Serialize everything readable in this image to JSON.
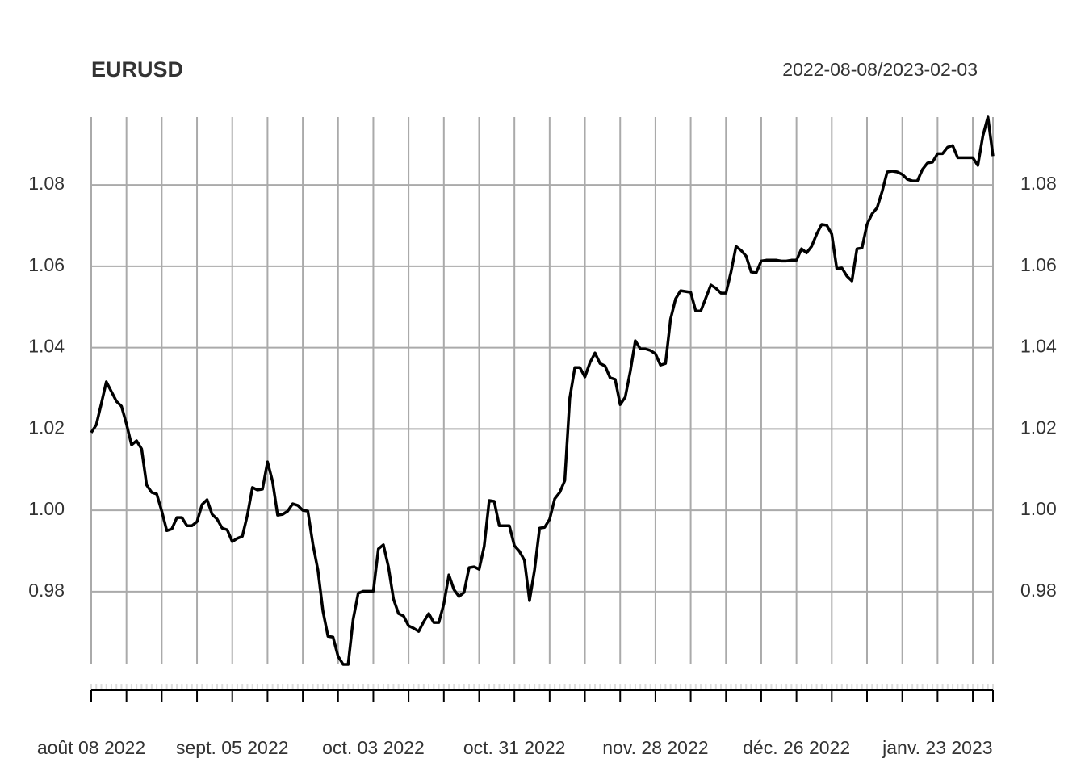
{
  "chart_data": {
    "type": "line",
    "title": "EURUSD",
    "subtitle": "2022-08-08/2023-02-03",
    "x": [
      "2022-08-08",
      "2022-08-09",
      "2022-08-10",
      "2022-08-11",
      "2022-08-12",
      "2022-08-13",
      "2022-08-14",
      "2022-08-15",
      "2022-08-16",
      "2022-08-17",
      "2022-08-18",
      "2022-08-19",
      "2022-08-20",
      "2022-08-21",
      "2022-08-22",
      "2022-08-23",
      "2022-08-24",
      "2022-08-25",
      "2022-08-26",
      "2022-08-27",
      "2022-08-28",
      "2022-08-29",
      "2022-08-30",
      "2022-08-31",
      "2022-09-01",
      "2022-09-02",
      "2022-09-03",
      "2022-09-04",
      "2022-09-05",
      "2022-09-06",
      "2022-09-07",
      "2022-09-08",
      "2022-09-09",
      "2022-09-10",
      "2022-09-11",
      "2022-09-12",
      "2022-09-13",
      "2022-09-14",
      "2022-09-15",
      "2022-09-16",
      "2022-09-17",
      "2022-09-18",
      "2022-09-19",
      "2022-09-20",
      "2022-09-21",
      "2022-09-22",
      "2022-09-23",
      "2022-09-24",
      "2022-09-25",
      "2022-09-26",
      "2022-09-27",
      "2022-09-28",
      "2022-09-29",
      "2022-09-30",
      "2022-10-01",
      "2022-10-02",
      "2022-10-03",
      "2022-10-04",
      "2022-10-05",
      "2022-10-06",
      "2022-10-07",
      "2022-10-08",
      "2022-10-09",
      "2022-10-10",
      "2022-10-11",
      "2022-10-12",
      "2022-10-13",
      "2022-10-14",
      "2022-10-15",
      "2022-10-16",
      "2022-10-17",
      "2022-10-18",
      "2022-10-19",
      "2022-10-20",
      "2022-10-21",
      "2022-10-22",
      "2022-10-23",
      "2022-10-24",
      "2022-10-25",
      "2022-10-26",
      "2022-10-27",
      "2022-10-28",
      "2022-10-29",
      "2022-10-30",
      "2022-10-31",
      "2022-11-01",
      "2022-11-02",
      "2022-11-03",
      "2022-11-04",
      "2022-11-05",
      "2022-11-06",
      "2022-11-07",
      "2022-11-08",
      "2022-11-09",
      "2022-11-10",
      "2022-11-11",
      "2022-11-12",
      "2022-11-13",
      "2022-11-14",
      "2022-11-15",
      "2022-11-16",
      "2022-11-17",
      "2022-11-18",
      "2022-11-19",
      "2022-11-20",
      "2022-11-21",
      "2022-11-22",
      "2022-11-23",
      "2022-11-24",
      "2022-11-25",
      "2022-11-26",
      "2022-11-27",
      "2022-11-28",
      "2022-11-29",
      "2022-11-30",
      "2022-12-01",
      "2022-12-02",
      "2022-12-03",
      "2022-12-04",
      "2022-12-05",
      "2022-12-06",
      "2022-12-07",
      "2022-12-08",
      "2022-12-09",
      "2022-12-10",
      "2022-12-11",
      "2022-12-12",
      "2022-12-13",
      "2022-12-14",
      "2022-12-15",
      "2022-12-16",
      "2022-12-17",
      "2022-12-18",
      "2022-12-19",
      "2022-12-20",
      "2022-12-21",
      "2022-12-22",
      "2022-12-23",
      "2022-12-24",
      "2022-12-25",
      "2022-12-26",
      "2022-12-27",
      "2022-12-28",
      "2022-12-29",
      "2022-12-30",
      "2022-12-31",
      "2023-01-01",
      "2023-01-02",
      "2023-01-03",
      "2023-01-04",
      "2023-01-05",
      "2023-01-06",
      "2023-01-07",
      "2023-01-08",
      "2023-01-09",
      "2023-01-10",
      "2023-01-11",
      "2023-01-12",
      "2023-01-13",
      "2023-01-14",
      "2023-01-15",
      "2023-01-16",
      "2023-01-17",
      "2023-01-18",
      "2023-01-19",
      "2023-01-20",
      "2023-01-21",
      "2023-01-22",
      "2023-01-23",
      "2023-01-24",
      "2023-01-25",
      "2023-01-26",
      "2023-01-27",
      "2023-01-28",
      "2023-01-29",
      "2023-01-30",
      "2023-01-31",
      "2023-02-01",
      "2023-02-02",
      "2023-02-03"
    ],
    "series": [
      {
        "name": "EURUSD",
        "color": "#000000",
        "values": [
          1.0191,
          1.021,
          1.0262,
          1.0316,
          1.0292,
          1.0268,
          1.0256,
          1.0212,
          1.0161,
          1.0171,
          1.0151,
          1.0062,
          1.0044,
          1.004,
          0.9998,
          0.995,
          0.9954,
          0.9982,
          0.9982,
          0.9962,
          0.9962,
          0.9972,
          1.0014,
          1.0026,
          0.999,
          0.9978,
          0.9956,
          0.9952,
          0.9923,
          0.9931,
          0.9936,
          0.9988,
          1.0056,
          1.005,
          1.0052,
          1.0119,
          1.0071,
          0.9988,
          0.999,
          0.9998,
          1.0016,
          1.0012,
          1.0,
          0.9998,
          0.9917,
          0.9853,
          0.9752,
          0.969,
          0.9688,
          0.9641,
          0.9621,
          0.9621,
          0.9732,
          0.9796,
          0.9801,
          0.9801,
          0.9801,
          0.9905,
          0.9915,
          0.9861,
          0.9782,
          0.9746,
          0.974,
          0.9716,
          0.971,
          0.9702,
          0.9726,
          0.9746,
          0.9724,
          0.9724,
          0.977,
          0.9841,
          0.9805,
          0.9788,
          0.9798,
          0.9859,
          0.9861,
          0.9855,
          0.9911,
          1.0024,
          1.0022,
          0.9962,
          0.9962,
          0.9962,
          0.9913,
          0.9899,
          0.9877,
          0.9778,
          0.9853,
          0.9956,
          0.9958,
          0.9978,
          1.0028,
          1.0044,
          1.0073,
          1.0276,
          1.0351,
          1.0351,
          1.0328,
          1.0363,
          1.0387,
          1.0361,
          1.0355,
          1.0326,
          1.0322,
          1.026,
          1.0278,
          1.0341,
          1.0417,
          1.0397,
          1.0397,
          1.0393,
          1.0385,
          1.0357,
          1.0361,
          1.047,
          1.052,
          1.054,
          1.0538,
          1.0536,
          1.049,
          1.049,
          1.0522,
          1.0554,
          1.0546,
          1.0534,
          1.0534,
          1.0586,
          1.0649,
          1.0639,
          1.0625,
          1.0586,
          1.0584,
          1.0613,
          1.0615,
          1.0615,
          1.0615,
          1.0613,
          1.0613,
          1.0615,
          1.0615,
          1.0643,
          1.0633,
          1.0649,
          1.0679,
          1.0703,
          1.0701,
          1.0679,
          1.0594,
          1.0596,
          1.0576,
          1.0564,
          1.0643,
          1.0645,
          1.0703,
          1.0729,
          1.0744,
          1.0784,
          1.0832,
          1.0834,
          1.0832,
          1.0826,
          1.0814,
          1.081,
          1.081,
          1.0838,
          1.0854,
          1.0856,
          1.0877,
          1.0877,
          1.0893,
          1.0897,
          1.0867,
          1.0867,
          1.0867,
          1.0867,
          1.0848,
          1.0921,
          1.0967,
          1.0871
        ]
      }
    ],
    "ylim": [
      0.9621,
      1.0967
    ],
    "yticks": [
      0.98,
      {
        "value": 1,
        "label": "1.00"
      },
      1.02,
      1.04,
      1.06,
      1.08
    ],
    "xticks": [
      {
        "value": "2022-08-08",
        "label": "août 08 2022"
      },
      {
        "value": "2022-09-05",
        "label": "sept. 05 2022"
      },
      {
        "value": "2022-10-03",
        "label": "oct. 03 2022"
      },
      {
        "value": "2022-10-31",
        "label": "oct. 31 2022"
      },
      {
        "value": "2022-11-28",
        "label": "nov. 28 2022"
      },
      {
        "value": "2022-12-26",
        "label": "déc. 26 2022"
      },
      {
        "value": "2023-01-23",
        "label": "janv. 23 2023"
      }
    ],
    "grid": true
  }
}
